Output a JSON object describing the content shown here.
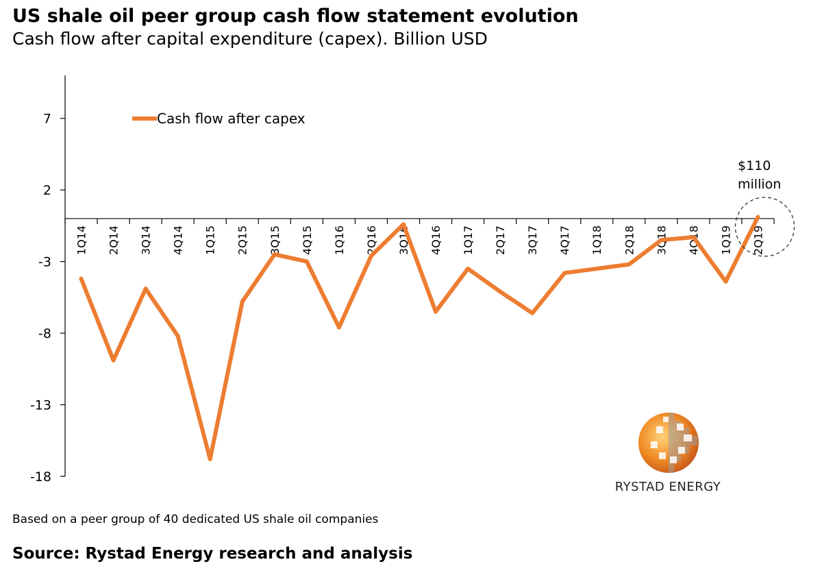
{
  "header": {
    "title": "US shale oil peer group cash flow statement evolution",
    "subtitle": "Cash flow after capital expenditure (capex). Billion USD"
  },
  "footer": {
    "note": "Based on a peer group of 40 dedicated US shale oil companies",
    "source": "Source: Rystad Energy research and analysis"
  },
  "logo": {
    "text": "RYSTAD ENERGY",
    "icon": "rystad-globe-logo"
  },
  "annotation": {
    "line1": "$110",
    "line2": "million"
  },
  "colors": {
    "series": "#ED7D31",
    "axis": "#000000",
    "annotation_circle": "#333333"
  },
  "chart_data": {
    "type": "line",
    "title": "US shale oil peer group cash flow statement evolution",
    "subtitle": "Cash flow after capital expenditure (capex). Billion USD",
    "categories": [
      "1Q14",
      "2Q14",
      "3Q14",
      "4Q14",
      "1Q15",
      "2Q15",
      "3Q15",
      "4Q15",
      "1Q16",
      "2Q16",
      "3Q16",
      "4Q16",
      "1Q17",
      "2Q17",
      "3Q17",
      "4Q17",
      "1Q18",
      "2Q18",
      "3Q18",
      "4Q18",
      "1Q19",
      "2Q19"
    ],
    "series": [
      {
        "name": "Cash flow after capex",
        "values": [
          -4.2,
          -9.9,
          -4.9,
          -8.2,
          -16.8,
          -5.8,
          -2.5,
          -3.0,
          -7.6,
          -2.6,
          -0.4,
          -6.5,
          -3.5,
          -5.1,
          -6.6,
          -3.8,
          -3.5,
          -3.2,
          -1.5,
          -1.3,
          -4.4,
          0.11
        ]
      }
    ],
    "yticks": [
      7,
      2,
      -3,
      -8,
      -13,
      -18
    ],
    "ylim": [
      -18,
      10
    ],
    "xlabel": "",
    "ylabel": "",
    "legend": "top-left",
    "grid": false
  }
}
